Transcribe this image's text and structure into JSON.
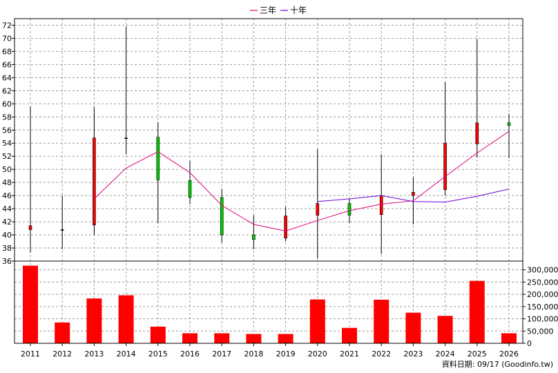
{
  "chart_data": {
    "type": "candlestick+line+bar",
    "legend": [
      {
        "label": "三年",
        "color": "#e0007a"
      },
      {
        "label": "十年",
        "color": "#6a00d8"
      }
    ],
    "categories": [
      "2011",
      "2012",
      "2013",
      "2014",
      "2015",
      "2016",
      "2017",
      "2018",
      "2019",
      "2020",
      "2021",
      "2022",
      "2023",
      "2024",
      "2025",
      "2026"
    ],
    "price": {
      "ylim": [
        36,
        73
      ],
      "yticks": [
        36,
        38,
        40,
        42,
        44,
        46,
        48,
        50,
        52,
        54,
        56,
        58,
        60,
        62,
        64,
        66,
        68,
        70,
        72
      ],
      "up_color": "#ff0000",
      "down_color": "#00cc00",
      "candles": [
        {
          "open": 40.8,
          "close": 41.4,
          "high": 59.6,
          "low": 37.3
        },
        {
          "open": 40.8,
          "close": 40.8,
          "high": 46.0,
          "low": 37.8
        },
        {
          "open": 41.5,
          "close": 54.8,
          "high": 59.5,
          "low": 40.0
        },
        {
          "open": 54.8,
          "close": 54.8,
          "high": 71.8,
          "low": 52.3
        },
        {
          "open": 54.9,
          "close": 48.4,
          "high": 57.2,
          "low": 41.8
        },
        {
          "open": 48.3,
          "close": 45.7,
          "high": 51.3,
          "low": 44.7
        },
        {
          "open": 45.7,
          "close": 40.0,
          "high": 47.0,
          "low": 38.8
        },
        {
          "open": 40.0,
          "close": 39.3,
          "high": 43.0,
          "low": 37.8
        },
        {
          "open": 39.5,
          "close": 42.9,
          "high": 44.3,
          "low": 39.0
        },
        {
          "open": 43.0,
          "close": 44.8,
          "high": 53.1,
          "low": 36.4
        },
        {
          "open": 44.8,
          "close": 43.0,
          "high": 45.5,
          "low": 41.8
        },
        {
          "open": 43.1,
          "close": 46.0,
          "high": 52.3,
          "low": 37.1
        },
        {
          "open": 46.0,
          "close": 46.5,
          "high": 48.8,
          "low": 41.6
        },
        {
          "open": 46.9,
          "close": 54.0,
          "high": 63.3,
          "low": 46.0
        },
        {
          "open": 53.9,
          "close": 57.1,
          "high": 69.9,
          "low": 51.8
        },
        {
          "open": 57.1,
          "close": 56.7,
          "high": 58.5,
          "low": 51.7
        }
      ],
      "series": [
        {
          "name": "三年",
          "color": "#e0007a",
          "values": [
            null,
            null,
            45.5,
            50.2,
            52.7,
            49.5,
            44.5,
            41.6,
            40.6,
            42.2,
            43.7,
            44.7,
            45.2,
            48.9,
            52.5,
            55.8
          ]
        },
        {
          "name": "十年",
          "color": "#6a00d8",
          "values": [
            null,
            null,
            null,
            null,
            null,
            null,
            null,
            null,
            null,
            45.1,
            45.5,
            46.0,
            45.1,
            45.0,
            45.9,
            47.0
          ]
        }
      ]
    },
    "volume": {
      "color": "#ff0000",
      "ylim": [
        0,
        330000
      ],
      "yticks": [
        {
          "value": 0,
          "label": "0"
        },
        {
          "value": 50000,
          "label": "50,000"
        },
        {
          "value": 100000,
          "label": "100,000"
        },
        {
          "value": 150000,
          "label": "150,000"
        },
        {
          "value": 200000,
          "label": "200,000"
        },
        {
          "value": 250000,
          "label": "250,000"
        },
        {
          "value": 300000,
          "label": "300,000"
        }
      ],
      "values": [
        317000,
        85000,
        183000,
        196000,
        68000,
        41000,
        41000,
        38000,
        38000,
        179000,
        63000,
        178000,
        125000,
        112000,
        255000,
        41000
      ]
    }
  },
  "footer": {
    "text": "資料日期: 09/17  (Goodinfo.tw)"
  }
}
